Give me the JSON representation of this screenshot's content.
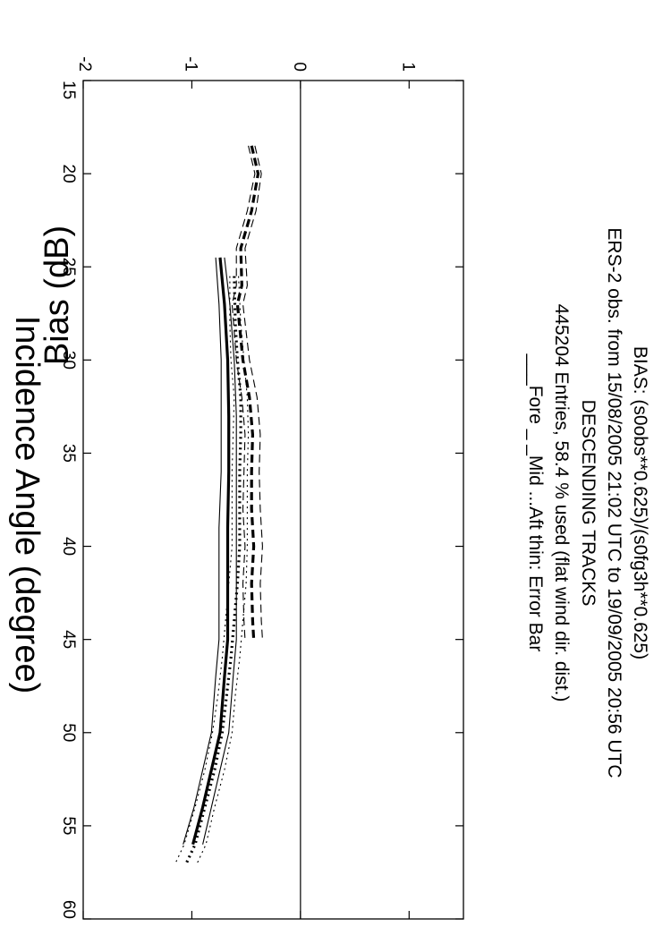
{
  "chart_data": {
    "type": "line",
    "title_lines": [
      "BIAS: (s0obs**0.625)/(s0fg3h**0.625)",
      "ERS-2 obs. from 15/08/2005  21:02 UTC to 19/09/2005  20:56 UTC",
      "DESCENDING TRACKS",
      "445204 Entries,   58.4 % used (flat wind dir. dist.)",
      "___Fore  _ _Mid  ...Aft  thin: Error Bar"
    ],
    "xlabel": "Incidence Angle (degree)",
    "ylabel": "Bias  (dB)",
    "xlim": [
      15,
      60
    ],
    "ylim": [
      -2,
      1.5
    ],
    "xticks": [
      15,
      20,
      25,
      30,
      35,
      40,
      45,
      50,
      55,
      60
    ],
    "yticks": [
      -2,
      -1,
      0,
      1
    ],
    "grid": false,
    "reference_line_y": 0,
    "series": [
      {
        "name": "Fore",
        "style": "solid",
        "x": [
          24.5,
          27,
          30,
          33,
          36,
          39,
          42,
          45,
          47,
          50,
          52,
          54,
          56
        ],
        "y": [
          -0.74,
          -0.7,
          -0.67,
          -0.66,
          -0.66,
          -0.67,
          -0.67,
          -0.67,
          -0.7,
          -0.74,
          -0.82,
          -0.9,
          -0.99
        ],
        "error": [
          0.04,
          0.05,
          0.06,
          0.07,
          0.07,
          0.08,
          0.08,
          0.08,
          0.08,
          0.08,
          0.08,
          0.08,
          0.09
        ]
      },
      {
        "name": "Mid",
        "style": "dashed",
        "x": [
          18.5,
          20,
          22,
          24,
          26,
          27,
          30,
          32,
          34,
          36,
          38,
          40,
          42,
          44,
          45
        ],
        "y": [
          -0.45,
          -0.39,
          -0.45,
          -0.55,
          -0.54,
          -0.58,
          -0.53,
          -0.47,
          -0.44,
          -0.45,
          -0.45,
          -0.43,
          -0.45,
          -0.44,
          -0.43
        ],
        "error": [
          0.03,
          0.03,
          0.04,
          0.04,
          0.05,
          0.05,
          0.06,
          0.07,
          0.07,
          0.07,
          0.08,
          0.08,
          0.08,
          0.08,
          0.08
        ]
      },
      {
        "name": "Aft",
        "style": "dotted",
        "x": [
          25.5,
          28,
          30,
          32,
          34,
          36,
          38,
          40,
          42,
          44,
          46,
          48,
          50,
          52,
          54,
          56,
          57
        ],
        "y": [
          -0.61,
          -0.6,
          -0.58,
          -0.55,
          -0.55,
          -0.56,
          -0.56,
          -0.56,
          -0.58,
          -0.61,
          -0.64,
          -0.68,
          -0.72,
          -0.79,
          -0.88,
          -0.97,
          -1.05
        ],
        "error": [
          0.04,
          0.05,
          0.06,
          0.06,
          0.07,
          0.07,
          0.07,
          0.07,
          0.08,
          0.08,
          0.08,
          0.08,
          0.09,
          0.09,
          0.09,
          0.1,
          0.1
        ]
      }
    ]
  }
}
